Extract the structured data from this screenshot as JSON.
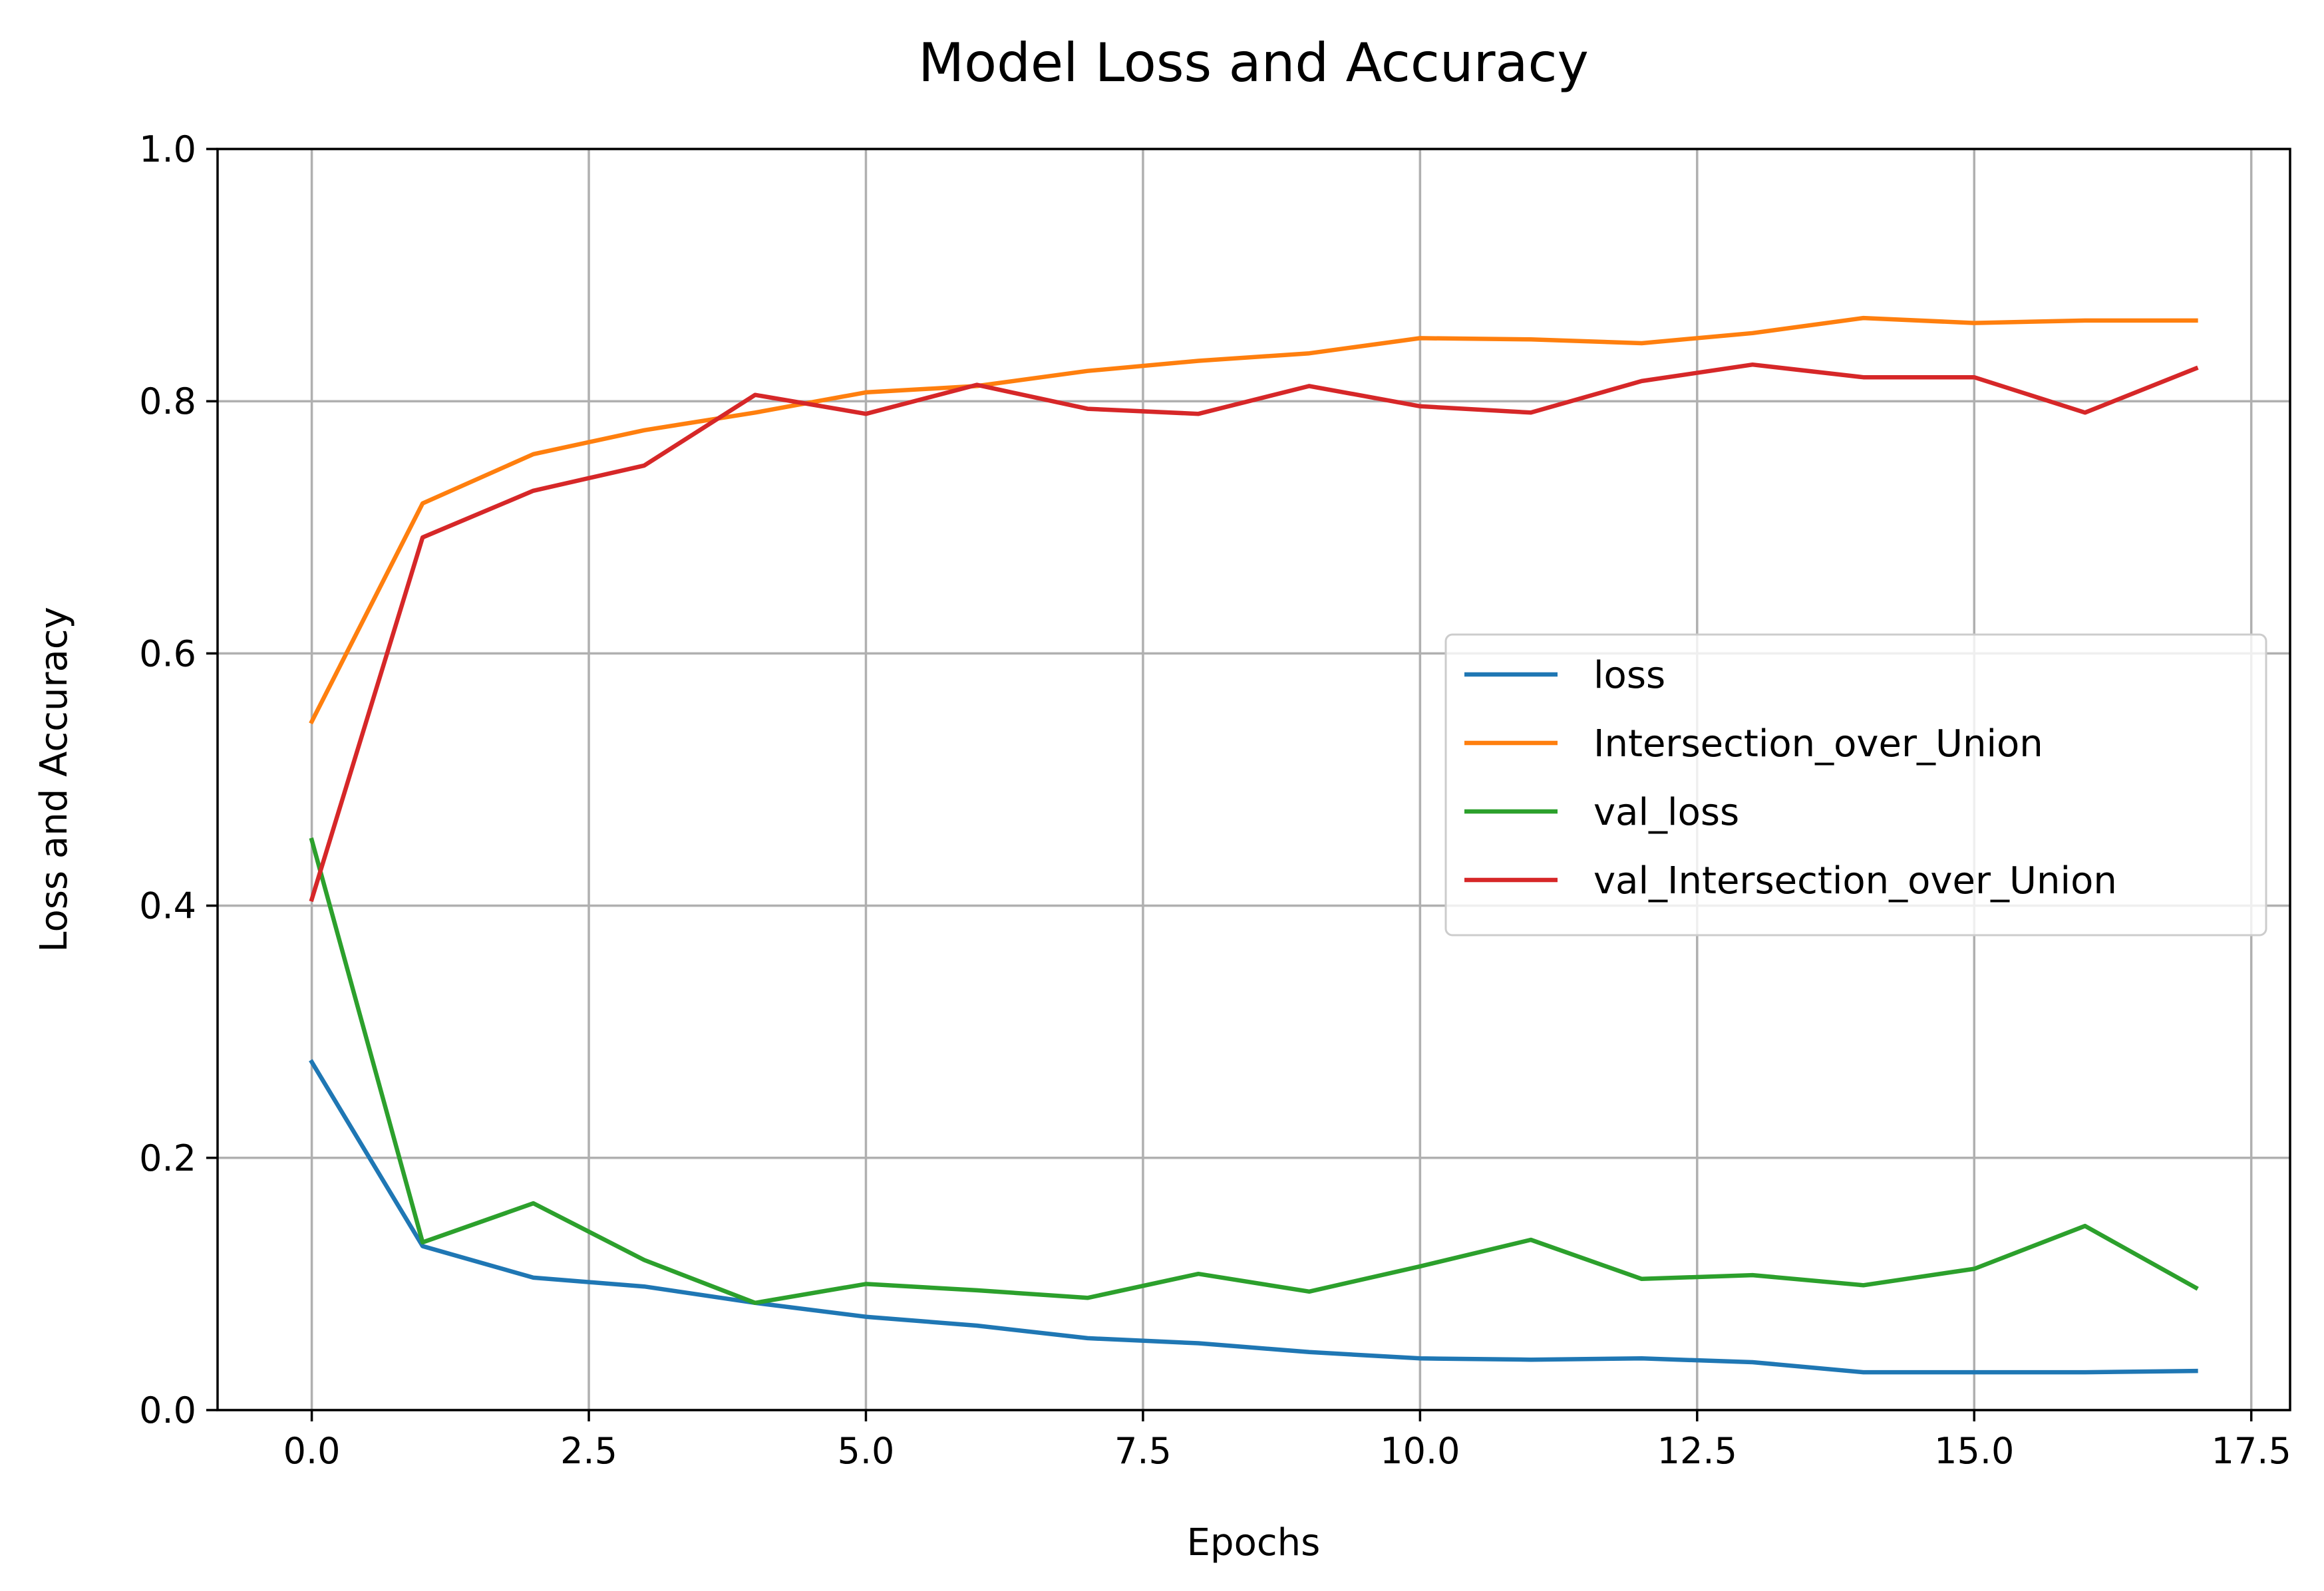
{
  "chart_data": {
    "type": "line",
    "title": "Model Loss and Accuracy",
    "xlabel": "Epochs",
    "ylabel": "Loss and Accuracy",
    "xlim": [
      -0.85,
      17.85
    ],
    "ylim": [
      0.0,
      1.0
    ],
    "x_ticks": [
      0.0,
      2.5,
      5.0,
      7.5,
      10.0,
      12.5,
      15.0,
      17.5
    ],
    "x_tick_labels": [
      "0.0",
      "2.5",
      "5.0",
      "7.5",
      "10.0",
      "12.5",
      "15.0",
      "17.5"
    ],
    "y_ticks": [
      0.0,
      0.2,
      0.4,
      0.6,
      0.8,
      1.0
    ],
    "y_tick_labels": [
      "0.0",
      "0.2",
      "0.4",
      "0.6",
      "0.8",
      "1.0"
    ],
    "grid": true,
    "legend_position": "center-right",
    "x": [
      0,
      1,
      2,
      3,
      4,
      5,
      6,
      7,
      8,
      9,
      10,
      11,
      12,
      13,
      14,
      15,
      16,
      17
    ],
    "series": [
      {
        "name": "loss",
        "color": "#1f77b4",
        "values": [
          0.276,
          0.13,
          0.105,
          0.098,
          0.085,
          0.074,
          0.067,
          0.057,
          0.053,
          0.046,
          0.041,
          0.04,
          0.041,
          0.038,
          0.03,
          0.03,
          0.03,
          0.031
        ]
      },
      {
        "name": "Intersection_over_Union",
        "color": "#ff7f0e",
        "values": [
          0.546,
          0.719,
          0.758,
          0.777,
          0.791,
          0.807,
          0.812,
          0.824,
          0.832,
          0.838,
          0.85,
          0.849,
          0.846,
          0.854,
          0.866,
          0.862,
          0.864,
          0.864
        ]
      },
      {
        "name": "val_loss",
        "color": "#2ca02c",
        "values": [
          0.452,
          0.133,
          0.164,
          0.119,
          0.085,
          0.1,
          0.095,
          0.089,
          0.108,
          0.094,
          0.114,
          0.135,
          0.104,
          0.107,
          0.099,
          0.112,
          0.146,
          0.097
        ]
      },
      {
        "name": "val_Intersection_over_Union",
        "color": "#d62728",
        "values": [
          0.405,
          0.692,
          0.729,
          0.749,
          0.805,
          0.79,
          0.813,
          0.794,
          0.79,
          0.812,
          0.796,
          0.791,
          0.816,
          0.829,
          0.819,
          0.819,
          0.791,
          0.826
        ]
      }
    ]
  }
}
